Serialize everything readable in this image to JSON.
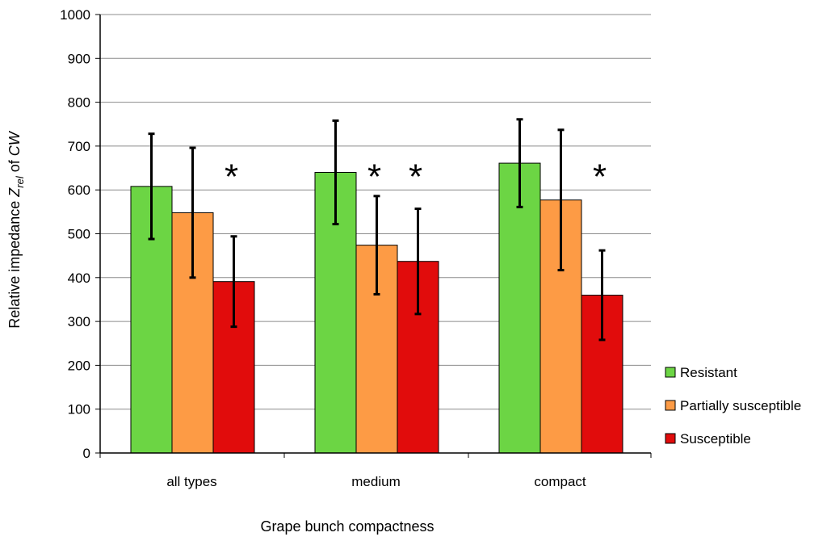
{
  "chart_data": {
    "type": "bar",
    "xlabel": "Grape bunch compactness",
    "ylabel": {
      "prefix": "Relative impedance ",
      "var": "Z",
      "sub": "rel",
      "mid": " of ",
      "suffix": "CW"
    },
    "ylim": [
      0,
      1000
    ],
    "yticks": [
      0,
      100,
      200,
      300,
      400,
      500,
      600,
      700,
      800,
      900,
      1000
    ],
    "grid": true,
    "legend_position": "right",
    "categories": [
      "all types",
      "medium",
      "compact"
    ],
    "series": [
      {
        "name": "Resistant",
        "color": "#6CD544",
        "values": [
          608,
          640,
          661
        ],
        "error": [
          120,
          118,
          100
        ],
        "significant": [
          false,
          false,
          false
        ]
      },
      {
        "name": "Partially susceptible",
        "color": "#FD9B45",
        "values": [
          548,
          474,
          577
        ],
        "error": [
          148,
          112,
          160
        ],
        "significant": [
          false,
          true,
          false
        ]
      },
      {
        "name": "Susceptible",
        "color": "#E10C0C",
        "values": [
          391,
          437,
          360
        ],
        "error": [
          103,
          120,
          102
        ],
        "significant": [
          true,
          true,
          true
        ]
      }
    ],
    "significance_marker": "*",
    "bar_edge_color": "#000000",
    "axis_color": "#000000",
    "grid_color": "#8c8c8c"
  }
}
